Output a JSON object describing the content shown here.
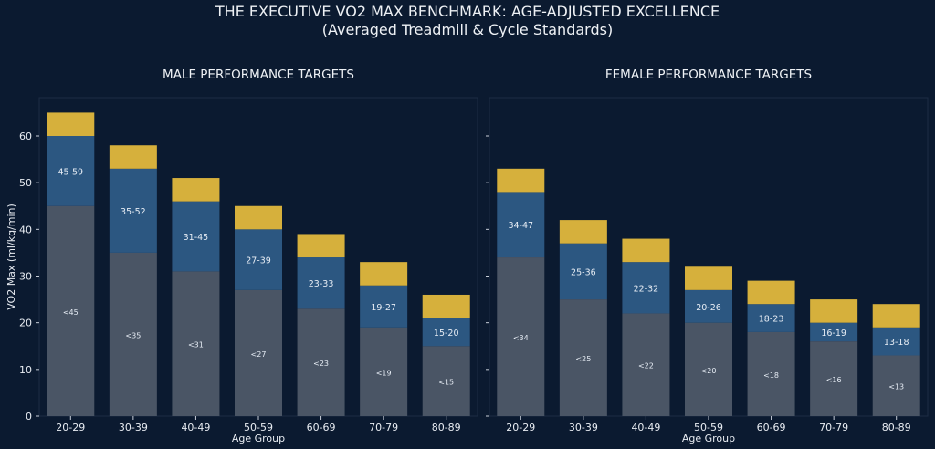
{
  "title": "THE EXECUTIVE VO2 MAX BENCHMARK: AGE-ADJUSTED EXCELLENCE",
  "subtitle": "(Averaged Treadmill & Cycle Standards)",
  "colors": {
    "background": "#0b1a30",
    "base": "#4a5565",
    "range": "#2c5781",
    "excellent": "#d6b03c",
    "text": "#e8ecf2"
  },
  "chart_data": [
    {
      "type": "bar",
      "stacked": true,
      "title": "MALE PERFORMANCE TARGETS",
      "xlabel": "Age Group",
      "ylabel": "VO2 Max (ml/kg/min)",
      "ylim": [
        0,
        65
      ],
      "yticks": [
        0,
        10,
        20,
        30,
        40,
        50,
        60
      ],
      "categories": [
        "20-29",
        "30-39",
        "40-49",
        "50-59",
        "60-69",
        "70-79",
        "80-89"
      ],
      "series": [
        {
          "values": [
            45,
            35,
            31,
            27,
            23,
            19,
            15
          ],
          "labels": [
            "<45",
            "<35",
            "<31",
            "<27",
            "<23",
            "<19",
            "<15"
          ]
        },
        {
          "values": [
            15,
            18,
            15,
            13,
            11,
            9,
            6
          ],
          "labels": [
            "45-59",
            "35-52",
            "31-45",
            "27-39",
            "23-33",
            "19-27",
            "15-20"
          ]
        },
        {
          "values": [
            5,
            5,
            5,
            5,
            5,
            5,
            5
          ]
        }
      ]
    },
    {
      "type": "bar",
      "stacked": true,
      "title": "FEMALE PERFORMANCE TARGETS",
      "xlabel": "Age Group",
      "ylabel": "",
      "ylim": [
        0,
        65
      ],
      "yticks": [
        0,
        10,
        20,
        30,
        40,
        50,
        60
      ],
      "categories": [
        "20-29",
        "30-39",
        "40-49",
        "50-59",
        "60-69",
        "70-79",
        "80-89"
      ],
      "series": [
        {
          "values": [
            34,
            25,
            22,
            20,
            18,
            16,
            13
          ],
          "labels": [
            "<34",
            "<25",
            "<22",
            "<20",
            "<18",
            "<16",
            "<13"
          ]
        },
        {
          "values": [
            14,
            12,
            11,
            7,
            6,
            4,
            6
          ],
          "labels": [
            "34-47",
            "25-36",
            "22-32",
            "20-26",
            "18-23",
            "16-19",
            "13-18"
          ]
        },
        {
          "values": [
            5,
            5,
            5,
            5,
            5,
            5,
            5
          ]
        }
      ]
    }
  ]
}
